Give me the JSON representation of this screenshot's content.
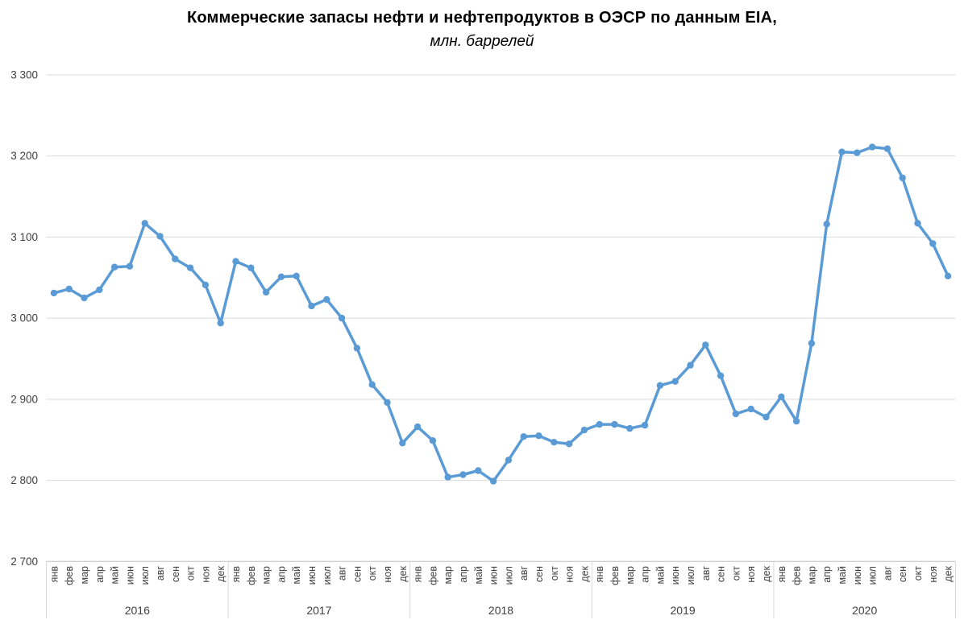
{
  "chart_data": {
    "type": "line",
    "title": "Коммерческие запасы нефти и нефтепродуктов в ОЭСР по данным EIA,",
    "subtitle": "млн. баррелей",
    "legend": "none",
    "grid": true,
    "ylim": [
      2700,
      3300
    ],
    "y_tick_step": 100,
    "y_tick_labels": [
      "2 700",
      "2 800",
      "2 900",
      "3 000",
      "3 100",
      "3 200",
      "3 300"
    ],
    "years": [
      "2016",
      "2017",
      "2018",
      "2019",
      "2020"
    ],
    "months": [
      "янв",
      "фев",
      "мар",
      "апр",
      "май",
      "июн",
      "июл",
      "авг",
      "сен",
      "окт",
      "ноя",
      "дек"
    ],
    "values": [
      3031,
      3036,
      3025,
      3035,
      3063,
      3064,
      3117,
      3101,
      3073,
      3062,
      3041,
      2994,
      3070,
      3062,
      3032,
      3051,
      3052,
      3015,
      3023,
      3000,
      2963,
      2918,
      2896,
      2846,
      2866,
      2849,
      2804,
      2807,
      2812,
      2799,
      2825,
      2854,
      2855,
      2847,
      2845,
      2862,
      2869,
      2869,
      2864,
      2868,
      2917,
      2922,
      2942,
      2967,
      2929,
      2882,
      2888,
      2878,
      2903,
      2873,
      2969,
      3116,
      3205,
      3204,
      3211,
      3209,
      3173,
      3117,
      3092,
      3052
    ],
    "line_color": "#5B9BD5",
    "marker_color": "#5B9BD5",
    "grid_color": "#D9D9D9",
    "axis_color": "#BFBFBF"
  }
}
